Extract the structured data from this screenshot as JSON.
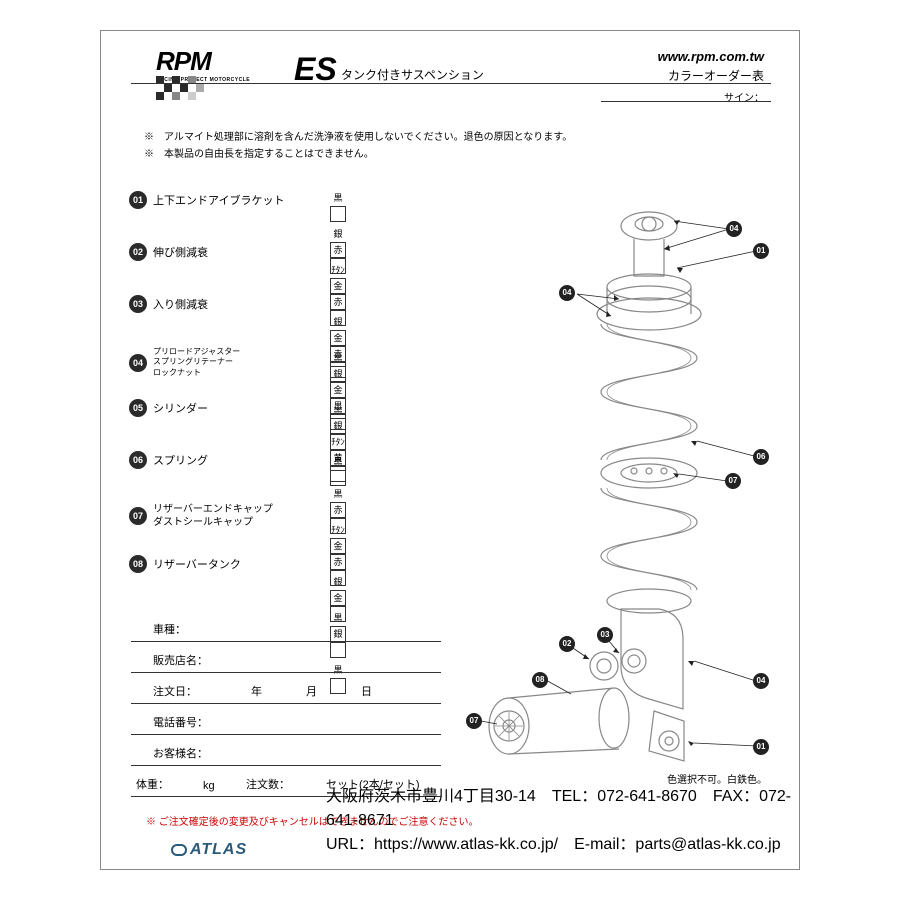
{
  "header": {
    "logo_text": "RPM",
    "logo_subtitle": "RACING PROJECT MOTORCYCLE",
    "product_code": "ES",
    "product_desc": "タンク付きサスペンション",
    "url": "www.rpm.com.tw",
    "color_order_title": "カラーオーダー表",
    "sign_label": "サイン："
  },
  "notes": {
    "line1": "※　アルマイト処理部に溶剤を含んだ洗浄液を使用しないでください。退色の原因となります。",
    "line2": "※　本製品の自由長を指定することはできません。"
  },
  "options": [
    {
      "num": "01",
      "label": "上下エンドアイブラケット",
      "colors": [
        "黒",
        "銀",
        "ﾁﾀﾝ"
      ]
    },
    {
      "num": "02",
      "label": "伸び側減衰",
      "colors": [
        "赤",
        "金",
        "銀",
        "黒"
      ]
    },
    {
      "num": "03",
      "label": "入り側減衰",
      "colors": [
        "赤",
        "金",
        "銀",
        "黒"
      ]
    },
    {
      "num": "04",
      "label_multi": [
        "プリロードアジャスター",
        "スプリングリテーナー",
        "ロックナット"
      ],
      "colors": [
        "赤",
        "金",
        "銀",
        "黒"
      ]
    },
    {
      "num": "05",
      "label": "シリンダー",
      "colors": [
        "黒",
        "ﾁﾀﾝ"
      ]
    },
    {
      "num": "06",
      "label": "スプリング",
      "colors": [
        "黄",
        "黒",
        "ﾁﾀﾝ"
      ]
    },
    {
      "num": "07",
      "label_multi2": [
        "リザーバーエンドキャップ",
        "ダストシールキャップ"
      ],
      "colors": [
        "赤",
        "金",
        "銀",
        "黒"
      ]
    },
    {
      "num": "08",
      "label": "リザーバータンク",
      "colors": [
        "赤",
        "金",
        "銀",
        "黒"
      ]
    }
  ],
  "form": {
    "vehicle": "車種：",
    "dealer": "販売店名：",
    "order_date": "注文日：",
    "year": "年",
    "month": "月",
    "day": "日",
    "phone": "電話番号：",
    "customer": "お客様名：",
    "weight": "体重：",
    "weight_unit": "kg",
    "qty": "注文数：",
    "qty_unit": "セット(2本/セット)"
  },
  "diagram_note": "色選択不可。白鉄色。",
  "cancel_note": "※ ご注文確定後の変更及びキャンセルはできませんのでご注意ください。",
  "footer": {
    "logo": "ATLAS",
    "address": "大阪府茨木市豊川4丁目30-14",
    "tel": "TEL：072-641-8670",
    "fax": "FAX：072-641-8671",
    "url": "URL：https://www.atlas-kk.co.jp/",
    "email": "E-mail：parts@atlas-kk.co.jp"
  },
  "callouts": [
    "01",
    "02",
    "03",
    "04",
    "04",
    "04",
    "06",
    "07",
    "07",
    "08",
    "01"
  ]
}
